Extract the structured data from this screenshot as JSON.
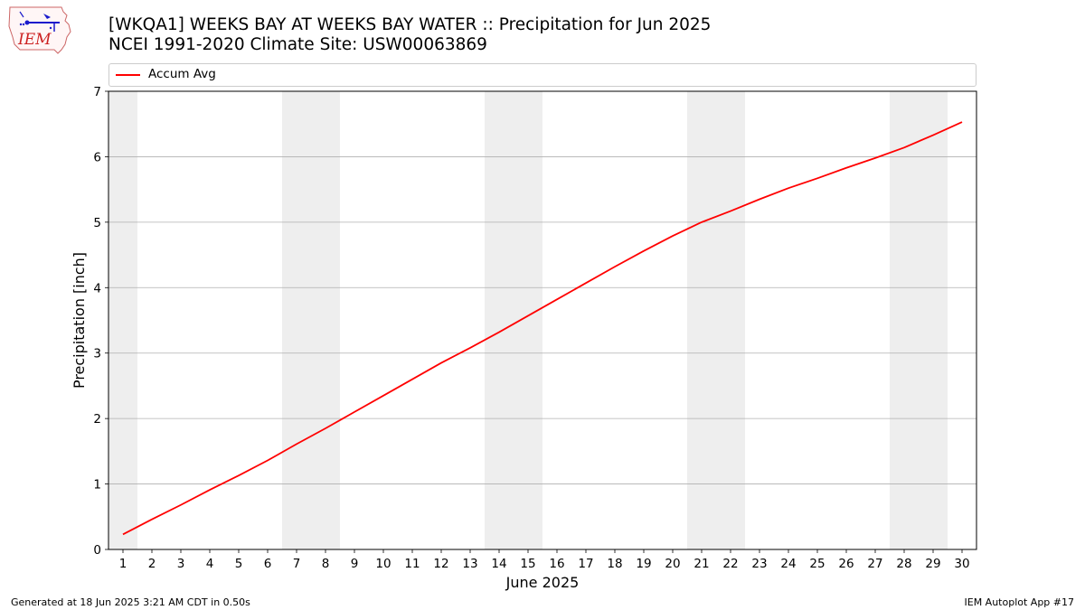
{
  "header": {
    "title": "[WKQA1] WEEKS BAY  AT WEEKS BAY WATER :: Precipitation for Jun 2025",
    "subtitle": "NCEI 1991-2020 Climate Site: USW00063869"
  },
  "logo": {
    "text": "IEM"
  },
  "footer": {
    "left": "Generated at 18 Jun 2025 3:21 AM CDT in 0.50s",
    "right": "IEM Autoplot App #17"
  },
  "colors": {
    "line": "#ff0000",
    "weekend_band": "#eeeeee",
    "grid": "#b0b0b0"
  },
  "chart_data": {
    "type": "line",
    "xlabel": "June 2025",
    "ylabel": "Precipitation [inch]",
    "xlim": [
      0.5,
      30.5
    ],
    "ylim": [
      0,
      7
    ],
    "yticks": [
      0,
      1,
      2,
      3,
      4,
      5,
      6,
      7
    ],
    "xticks": [
      "1",
      "2",
      "3",
      "4",
      "5",
      "6",
      "7",
      "8",
      "9",
      "10",
      "11",
      "12",
      "13",
      "14",
      "15",
      "16",
      "17",
      "18",
      "19",
      "20",
      "21",
      "22",
      "23",
      "24",
      "25",
      "26",
      "27",
      "28",
      "29",
      "30"
    ],
    "grid": "horizontal",
    "legend_position": "top",
    "weekend_bands": [
      [
        0.5,
        1.5
      ],
      [
        6.5,
        8.5
      ],
      [
        13.5,
        15.5
      ],
      [
        20.5,
        22.5
      ],
      [
        27.5,
        29.5
      ]
    ],
    "series": [
      {
        "name": "Accum Avg",
        "x": [
          1,
          2,
          3,
          4,
          5,
          6,
          7,
          8,
          9,
          10,
          11,
          12,
          13,
          14,
          15,
          16,
          17,
          18,
          19,
          20,
          21,
          22,
          23,
          24,
          25,
          26,
          27,
          28,
          29,
          30
        ],
        "values": [
          0.23,
          0.46,
          0.68,
          0.91,
          1.13,
          1.36,
          1.61,
          1.85,
          2.1,
          2.35,
          2.6,
          2.85,
          3.08,
          3.32,
          3.57,
          3.82,
          4.07,
          4.32,
          4.56,
          4.79,
          5.0,
          5.17,
          5.35,
          5.52,
          5.67,
          5.83,
          5.98,
          6.14,
          6.33,
          6.53
        ]
      }
    ]
  }
}
